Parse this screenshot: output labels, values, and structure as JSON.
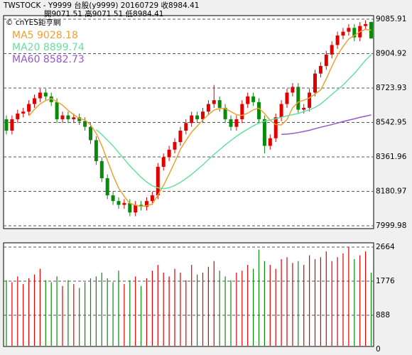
{
  "header": {
    "line1": "TWSTOCK  - Y9999  台股(y9999) 20160729    收8984.41",
    "line2": "開9071.51    高9071.51    低8984.41",
    "copyright": "© cnYES鉅亨網"
  },
  "chart_data": [
    {
      "type": "candlestick",
      "open": [
        8560,
        8500,
        8560,
        8590,
        8600,
        8640,
        8670,
        8700,
        8680,
        8650,
        8560,
        8580,
        8560,
        8570,
        8550,
        8520,
        8450,
        8340,
        8250,
        8160,
        8130,
        8110,
        8120,
        8070,
        8110,
        8100,
        8130,
        8160,
        8310,
        8360,
        8400,
        8440,
        8500,
        8540,
        8580,
        8560,
        8600,
        8640,
        8660,
        8620,
        8560,
        8520,
        8560,
        8640,
        8680,
        8650,
        8560,
        8420,
        8460,
        8570,
        8640,
        8700,
        8730,
        8610,
        8620,
        8700,
        8800,
        8840,
        8900,
        8950,
        9000,
        9020,
        9040,
        8990,
        9050,
        9071.51
      ],
      "high": [
        8580,
        8580,
        8610,
        8620,
        8660,
        8690,
        8720,
        8720,
        8700,
        8670,
        8600,
        8600,
        8590,
        8590,
        8570,
        8540,
        8470,
        8360,
        8270,
        8180,
        8150,
        8140,
        8140,
        8130,
        8130,
        8150,
        8180,
        8330,
        8380,
        8420,
        8460,
        8520,
        8560,
        8600,
        8600,
        8620,
        8660,
        8740,
        8680,
        8640,
        8580,
        8580,
        8660,
        8700,
        8700,
        8670,
        8580,
        8480,
        8590,
        8660,
        8720,
        8750,
        8750,
        8640,
        8720,
        8820,
        8860,
        8920,
        8970,
        9020,
        9040,
        9060,
        9060,
        9070,
        9080,
        9071.51
      ],
      "low": [
        8480,
        8480,
        8540,
        8570,
        8580,
        8620,
        8650,
        8660,
        8630,
        8540,
        8540,
        8540,
        8540,
        8530,
        8500,
        8430,
        8320,
        8230,
        8140,
        8110,
        8090,
        8090,
        8050,
        8050,
        8080,
        8080,
        8110,
        8140,
        8290,
        8340,
        8380,
        8420,
        8480,
        8520,
        8540,
        8540,
        8580,
        8620,
        8600,
        8540,
        8500,
        8500,
        8540,
        8620,
        8630,
        8540,
        8380,
        8400,
        8440,
        8550,
        8620,
        8680,
        8590,
        8590,
        8600,
        8680,
        8780,
        8820,
        8880,
        8930,
        8980,
        9000,
        8970,
        8970,
        9030,
        8984.41
      ],
      "close": [
        8500,
        8560,
        8590,
        8600,
        8640,
        8670,
        8700,
        8680,
        8650,
        8560,
        8580,
        8560,
        8570,
        8550,
        8520,
        8450,
        8340,
        8250,
        8160,
        8130,
        8110,
        8120,
        8070,
        8110,
        8100,
        8130,
        8160,
        8310,
        8360,
        8400,
        8440,
        8500,
        8540,
        8580,
        8560,
        8600,
        8640,
        8660,
        8620,
        8560,
        8520,
        8560,
        8640,
        8680,
        8650,
        8560,
        8420,
        8460,
        8570,
        8640,
        8700,
        8730,
        8610,
        8620,
        8700,
        8800,
        8840,
        8900,
        8950,
        9000,
        9020,
        9040,
        8990,
        9050,
        9060,
        8984.41
      ],
      "up_color": "#e00000",
      "down_color": "#0a8a0a",
      "series": [
        {
          "name": "MA5",
          "legend_label": "MA5 9028.18",
          "color": "#f0a030",
          "values": [
            null,
            null,
            null,
            null,
            8578,
            8612,
            8640,
            8658,
            8668,
            8652,
            8634,
            8606,
            8584,
            8564,
            8556,
            8530,
            8486,
            8422,
            8344,
            8266,
            8198,
            8154,
            8118,
            8108,
            8102,
            8106,
            8114,
            8162,
            8212,
            8272,
            8334,
            8402,
            8448,
            8492,
            8524,
            8556,
            8584,
            8608,
            8616,
            8616,
            8600,
            8584,
            8580,
            8592,
            8610,
            8618,
            8590,
            8554,
            8532,
            8530,
            8558,
            8620,
            8650,
            8660,
            8672,
            8692,
            8714,
            8772,
            8838,
            8898,
            8942,
            8982,
            9000,
            9020,
            9032,
            9028.18
          ]
        },
        {
          "name": "MA20",
          "legend_label": "MA20 8899.74",
          "color": "#66e0a0",
          "values": [
            null,
            null,
            null,
            null,
            null,
            null,
            null,
            null,
            null,
            null,
            null,
            null,
            null,
            null,
            null,
            null,
            8505,
            8480,
            8450,
            8420,
            8385,
            8350,
            8315,
            8285,
            8255,
            8230,
            8210,
            8200,
            8195,
            8200,
            8212,
            8228,
            8248,
            8270,
            8295,
            8320,
            8348,
            8375,
            8400,
            8425,
            8448,
            8470,
            8490,
            8508,
            8525,
            8540,
            8550,
            8556,
            8562,
            8570,
            8578,
            8584,
            8590,
            8600,
            8610,
            8622,
            8640,
            8665,
            8690,
            8715,
            8740,
            8770,
            8800,
            8835,
            8870,
            8899.74
          ]
        },
        {
          "name": "MA60",
          "legend_label": "MA60 8582.73",
          "color": "#9955cc",
          "values": [
            null,
            null,
            null,
            null,
            null,
            null,
            null,
            null,
            null,
            null,
            null,
            null,
            null,
            null,
            null,
            null,
            null,
            null,
            null,
            null,
            null,
            null,
            null,
            null,
            null,
            null,
            null,
            null,
            null,
            null,
            null,
            null,
            null,
            null,
            null,
            null,
            null,
            null,
            null,
            null,
            null,
            null,
            null,
            null,
            null,
            null,
            null,
            null,
            null,
            8480,
            8482,
            8485,
            8490,
            8496,
            8502,
            8510,
            8518,
            8525,
            8532,
            8540,
            8548,
            8555,
            8562,
            8570,
            8576,
            8582.73
          ]
        }
      ],
      "ylim": [
        7999.98,
        9085.91
      ],
      "yticks": [
        9085.91,
        8904.92,
        8723.93,
        8542.95,
        8361.96,
        8180.97,
        7999.98
      ],
      "grid": "dashed"
    },
    {
      "type": "volume",
      "values": [
        1800,
        1750,
        1900,
        1700,
        1850,
        1950,
        2100,
        1800,
        1750,
        1900,
        1650,
        1800,
        1700,
        1600,
        1750,
        1850,
        1900,
        2000,
        1850,
        1750,
        2050,
        1700,
        1800,
        1900,
        1650,
        1850,
        2050,
        2200,
        2000,
        1900,
        2100,
        2000,
        1800,
        2200,
        1950,
        2000,
        2150,
        2300,
        2050,
        1900,
        1800,
        2000,
        2050,
        2200,
        2100,
        2600,
        2300,
        2200,
        2100,
        2350,
        2400,
        2250,
        2300,
        2200,
        2450,
        2350,
        2400,
        2550,
        2300,
        2400,
        2500,
        2664,
        2350,
        2450,
        2550,
        2000
      ],
      "ylim": [
        0,
        2775
      ],
      "yticks": [
        2664,
        1776,
        888,
        0
      ],
      "grid": "dashed"
    }
  ]
}
